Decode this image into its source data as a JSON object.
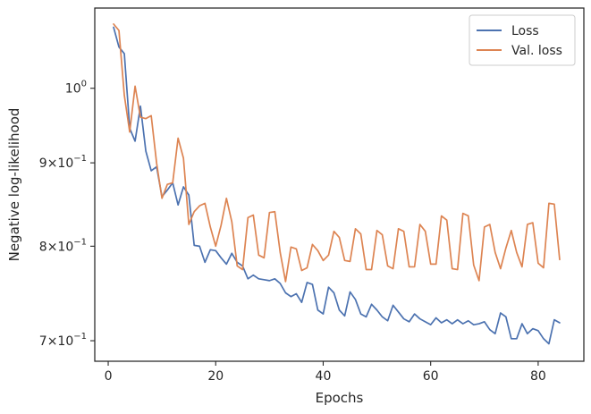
{
  "chart_data": {
    "type": "line",
    "xlabel": "Epochs",
    "ylabel": "Negative log-likelihood",
    "xlim": [
      -2.5,
      88.5
    ],
    "ylim": [
      0.68,
      1.12
    ],
    "yscale": "log",
    "grid": false,
    "legend_position": "top-right",
    "x_ticks": [
      {
        "value": 0,
        "label": "0"
      },
      {
        "value": 20,
        "label": "20"
      },
      {
        "value": 40,
        "label": "40"
      },
      {
        "value": 60,
        "label": "60"
      },
      {
        "value": 80,
        "label": "80"
      }
    ],
    "y_ticks": [
      {
        "value": 1.0,
        "label": "10",
        "sup": "0"
      },
      {
        "value": 0.9,
        "label": "9×10",
        "sup": "−1"
      },
      {
        "value": 0.8,
        "label": "8×10",
        "sup": "−1"
      },
      {
        "value": 0.7,
        "label": "7×10",
        "sup": "−1"
      }
    ],
    "series": [
      {
        "name": "Loss",
        "color": "#4c72b0",
        "x": [
          1,
          2,
          3,
          4,
          5,
          6,
          7,
          8,
          9,
          10,
          11,
          12,
          13,
          14,
          15,
          16,
          17,
          18,
          19,
          20,
          21,
          22,
          23,
          24,
          25,
          26,
          27,
          28,
          29,
          30,
          31,
          32,
          33,
          34,
          35,
          36,
          37,
          38,
          39,
          40,
          41,
          42,
          43,
          44,
          45,
          46,
          47,
          48,
          49,
          50,
          51,
          52,
          53,
          54,
          55,
          56,
          57,
          58,
          59,
          60,
          61,
          62,
          63,
          64,
          65,
          66,
          67,
          68,
          69,
          70,
          71,
          72,
          73,
          74,
          75,
          76,
          77,
          78,
          79,
          80,
          81,
          82,
          83,
          84
        ],
        "values": [
          1.09,
          1.06,
          1.05,
          0.945,
          0.928,
          0.975,
          0.915,
          0.89,
          0.895,
          0.858,
          0.866,
          0.875,
          0.848,
          0.87,
          0.86,
          0.801,
          0.8,
          0.782,
          0.796,
          0.795,
          0.787,
          0.78,
          0.792,
          0.782,
          0.778,
          0.764,
          0.768,
          0.764,
          0.763,
          0.762,
          0.764,
          0.759,
          0.749,
          0.745,
          0.748,
          0.739,
          0.76,
          0.758,
          0.731,
          0.727,
          0.755,
          0.749,
          0.731,
          0.725,
          0.75,
          0.742,
          0.727,
          0.724,
          0.737,
          0.731,
          0.724,
          0.72,
          0.736,
          0.729,
          0.722,
          0.719,
          0.727,
          0.722,
          0.719,
          0.716,
          0.723,
          0.718,
          0.721,
          0.717,
          0.721,
          0.717,
          0.72,
          0.716,
          0.717,
          0.719,
          0.711,
          0.707,
          0.728,
          0.724,
          0.702,
          0.702,
          0.717,
          0.707,
          0.712,
          0.71,
          0.702,
          0.697,
          0.721,
          0.718
        ]
      },
      {
        "name": "Val. loss",
        "color": "#dd8452",
        "x": [
          1,
          2,
          3,
          4,
          5,
          6,
          7,
          8,
          9,
          10,
          11,
          12,
          13,
          14,
          15,
          16,
          17,
          18,
          19,
          20,
          21,
          22,
          23,
          24,
          25,
          26,
          27,
          28,
          29,
          30,
          31,
          32,
          33,
          34,
          35,
          36,
          37,
          38,
          39,
          40,
          41,
          42,
          43,
          44,
          45,
          46,
          47,
          48,
          49,
          50,
          51,
          52,
          53,
          54,
          55,
          56,
          57,
          58,
          59,
          60,
          61,
          62,
          63,
          64,
          65,
          66,
          67,
          68,
          69,
          70,
          71,
          72,
          73,
          74,
          75,
          76,
          77,
          78,
          79,
          80,
          81,
          82,
          83,
          84
        ],
        "values": [
          1.095,
          1.085,
          0.99,
          0.94,
          1.003,
          0.96,
          0.958,
          0.962,
          0.9,
          0.856,
          0.873,
          0.875,
          0.932,
          0.906,
          0.825,
          0.84,
          0.847,
          0.85,
          0.822,
          0.8,
          0.824,
          0.856,
          0.828,
          0.778,
          0.774,
          0.833,
          0.836,
          0.79,
          0.787,
          0.839,
          0.84,
          0.793,
          0.761,
          0.799,
          0.797,
          0.773,
          0.776,
          0.802,
          0.795,
          0.784,
          0.79,
          0.817,
          0.81,
          0.784,
          0.783,
          0.82,
          0.814,
          0.774,
          0.774,
          0.818,
          0.813,
          0.778,
          0.775,
          0.82,
          0.817,
          0.777,
          0.777,
          0.825,
          0.817,
          0.78,
          0.78,
          0.835,
          0.83,
          0.775,
          0.774,
          0.838,
          0.835,
          0.779,
          0.762,
          0.822,
          0.825,
          0.793,
          0.775,
          0.798,
          0.818,
          0.793,
          0.777,
          0.825,
          0.827,
          0.781,
          0.776,
          0.85,
          0.849,
          0.785
        ]
      }
    ]
  }
}
